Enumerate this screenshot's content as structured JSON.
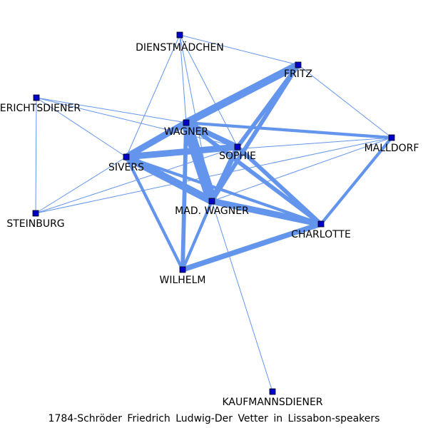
{
  "caption": "1784-Schröder_Friedrich_Ludwig-Der_Vetter_in_Lissabon-speakers",
  "caption_display": "1784-Schröder  Friedrich  Ludwig-Der  Vetter  in  Lissabon-speakers",
  "colors": {
    "edge": "#6495ed",
    "node_fill": "#0000cd",
    "node_stroke": "#000000",
    "label": "#000000"
  },
  "nodes": [
    {
      "id": "dienstmaedchen",
      "label": "DIENSTMÄDCHEN"
    },
    {
      "id": "fritz",
      "label": "FRITZ"
    },
    {
      "id": "gerichtsdiener",
      "label": "GERICHTSDIENER"
    },
    {
      "id": "wagner",
      "label": "WAGNER"
    },
    {
      "id": "malldorf",
      "label": "MALLDORF"
    },
    {
      "id": "sophie",
      "label": "SOPHIE"
    },
    {
      "id": "sivers",
      "label": "SIVERS"
    },
    {
      "id": "steinburg",
      "label": "STEINBURG"
    },
    {
      "id": "mad_wagner",
      "label": "MAD. WAGNER"
    },
    {
      "id": "charlotte",
      "label": "CHARLOTTE"
    },
    {
      "id": "wilhelm",
      "label": "WILHELM"
    },
    {
      "id": "kaufmannsdiener",
      "label": "KAUFMANNSDIENER"
    }
  ],
  "edges": [
    {
      "source": "wagner",
      "target": "mad_wagner",
      "weight": 10
    },
    {
      "source": "wagner",
      "target": "fritz",
      "weight": 7
    },
    {
      "source": "sivers",
      "target": "mad_wagner",
      "weight": 7
    },
    {
      "source": "wagner",
      "target": "sivers",
      "weight": 6
    },
    {
      "source": "sivers",
      "target": "sophie",
      "weight": 6
    },
    {
      "source": "mad_wagner",
      "target": "charlotte",
      "weight": 6
    },
    {
      "source": "wilhelm",
      "target": "charlotte",
      "weight": 5
    },
    {
      "source": "wagner",
      "target": "sophie",
      "weight": 5
    },
    {
      "source": "sophie",
      "target": "mad_wagner",
      "weight": 5
    },
    {
      "source": "fritz",
      "target": "sophie",
      "weight": 4
    },
    {
      "source": "fritz",
      "target": "mad_wagner",
      "weight": 4
    },
    {
      "source": "wagner",
      "target": "charlotte",
      "weight": 4
    },
    {
      "source": "sophie",
      "target": "charlotte",
      "weight": 4
    },
    {
      "source": "wagner",
      "target": "wilhelm",
      "weight": 4
    },
    {
      "source": "sivers",
      "target": "wilhelm",
      "weight": 3
    },
    {
      "source": "wilhelm",
      "target": "mad_wagner",
      "weight": 3
    },
    {
      "source": "wagner",
      "target": "malldorf",
      "weight": 3
    },
    {
      "source": "sivers",
      "target": "charlotte",
      "weight": 3
    },
    {
      "source": "malldorf",
      "target": "charlotte",
      "weight": 3
    },
    {
      "source": "dienstmaedchen",
      "target": "fritz",
      "weight": 1
    },
    {
      "source": "dienstmaedchen",
      "target": "wagner",
      "weight": 1
    },
    {
      "source": "dienstmaedchen",
      "target": "sophie",
      "weight": 1
    },
    {
      "source": "dienstmaedchen",
      "target": "sivers",
      "weight": 1
    },
    {
      "source": "dienstmaedchen",
      "target": "mad_wagner",
      "weight": 1
    },
    {
      "source": "fritz",
      "target": "malldorf",
      "weight": 1
    },
    {
      "source": "gerichtsdiener",
      "target": "wagner",
      "weight": 1
    },
    {
      "source": "gerichtsdiener",
      "target": "sophie",
      "weight": 1
    },
    {
      "source": "gerichtsdiener",
      "target": "sivers",
      "weight": 1
    },
    {
      "source": "gerichtsdiener",
      "target": "steinburg",
      "weight": 1
    },
    {
      "source": "sivers",
      "target": "malldorf",
      "weight": 1
    },
    {
      "source": "sivers",
      "target": "steinburg",
      "weight": 1
    },
    {
      "source": "steinburg",
      "target": "sophie",
      "weight": 1
    },
    {
      "source": "steinburg",
      "target": "malldorf",
      "weight": 1
    },
    {
      "source": "mad_wagner",
      "target": "malldorf",
      "weight": 1
    },
    {
      "source": "mad_wagner",
      "target": "kaufmannsdiener",
      "weight": 1
    }
  ]
}
